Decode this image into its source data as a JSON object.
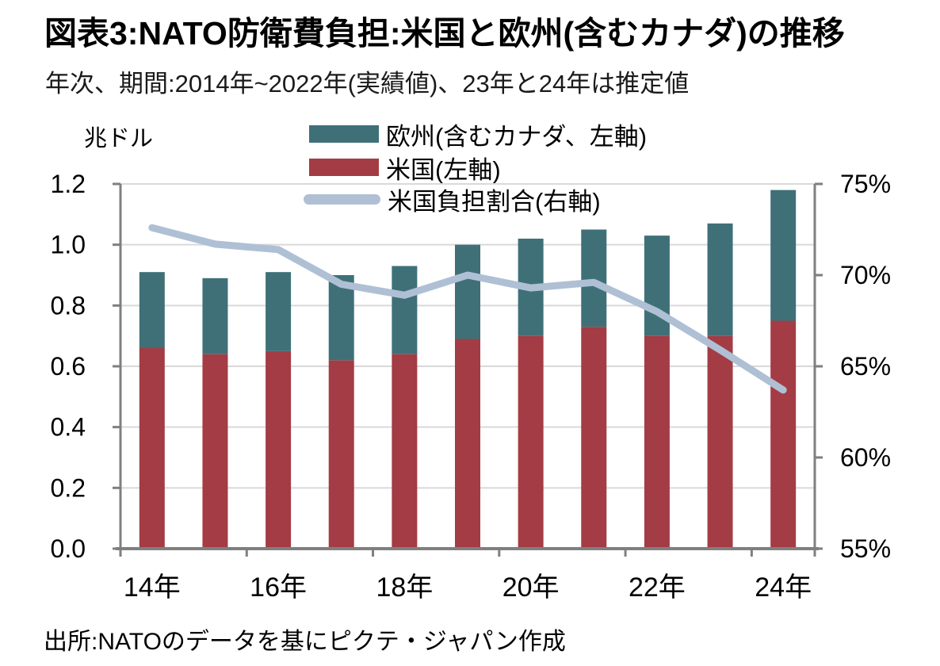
{
  "header": {
    "title": "図表3:NATO防衛費負担:米国と欧州(含むカナダ)の推移",
    "subtitle": "年次、期間:2014年~2022年(実績値)、23年と24年は推定値"
  },
  "source": "出所:NATOのデータを基にピクテ・ジャパン作成",
  "chart_data": {
    "type": "bar",
    "subtype": "stacked-bar-with-line",
    "categories": [
      "2014",
      "2015",
      "2016",
      "2017",
      "2018",
      "2019",
      "2020",
      "2021",
      "2022",
      "2023",
      "2024"
    ],
    "x_tick_labels": [
      "14年",
      "16年",
      "18年",
      "20年",
      "22年",
      "24年"
    ],
    "x_tick_category_indices": [
      0,
      2,
      4,
      6,
      8,
      10
    ],
    "series": [
      {
        "name": "欧州(含むカナダ、左軸)",
        "type": "bar",
        "stack": "top",
        "axis": "left",
        "color": "#3F7078",
        "values": [
          0.25,
          0.25,
          0.26,
          0.28,
          0.29,
          0.31,
          0.32,
          0.32,
          0.33,
          0.37,
          0.43
        ]
      },
      {
        "name": "米国(左軸)",
        "type": "bar",
        "stack": "bottom",
        "axis": "left",
        "color": "#A33C45",
        "values": [
          0.66,
          0.64,
          0.65,
          0.62,
          0.64,
          0.69,
          0.7,
          0.73,
          0.7,
          0.7,
          0.75
        ]
      },
      {
        "name": "米国負担割合(右軸)",
        "type": "line",
        "axis": "right",
        "color": "#AFC0D5",
        "values": [
          72.6,
          71.7,
          71.4,
          69.5,
          68.9,
          70.0,
          69.3,
          69.6,
          68.0,
          65.9,
          63.7
        ]
      }
    ],
    "left_axis": {
      "label": "兆ドル",
      "min": 0,
      "max": 1.2,
      "tick_values": [
        0,
        0.2,
        0.4,
        0.6,
        0.8,
        1.0,
        1.2
      ],
      "tick_labels": [
        "0.0",
        "0.2",
        "0.4",
        "0.6",
        "0.8",
        "1.0",
        "1.2"
      ]
    },
    "right_axis": {
      "min": 55,
      "max": 75,
      "tick_values": [
        55,
        60,
        65,
        70,
        75
      ],
      "tick_labels": [
        "55%",
        "60%",
        "65%",
        "70%",
        "75%"
      ]
    },
    "grid": true,
    "legend_position": "top-center",
    "colors": {
      "grid": "#D9D9D9",
      "axis": "#7F7F7F",
      "top_frame": "#D9D9D9"
    }
  }
}
